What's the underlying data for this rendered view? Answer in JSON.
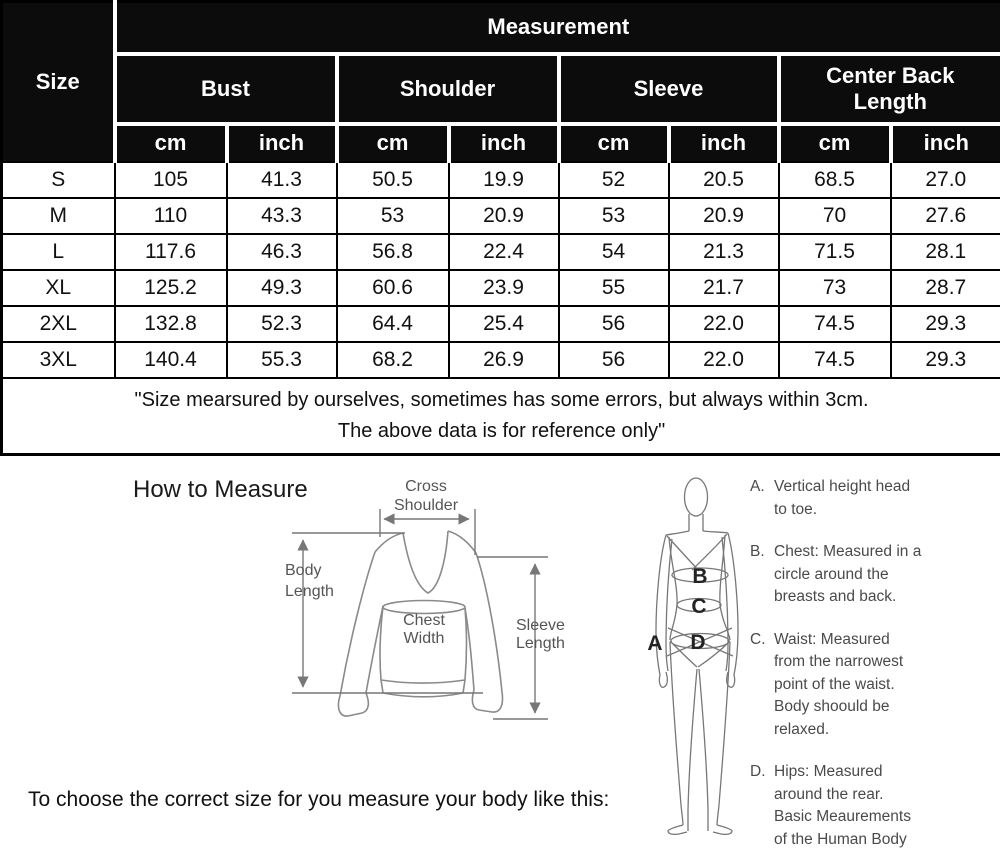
{
  "table": {
    "corner_label": "Size",
    "measurement_label": "Measurement",
    "groups": [
      {
        "label": "Bust"
      },
      {
        "label": "Shoulder"
      },
      {
        "label": "Sleeve"
      },
      {
        "label": "Center Back\nLength"
      }
    ],
    "units": [
      "cm",
      "inch"
    ],
    "rows": [
      {
        "size": "S",
        "values": [
          "105",
          "41.3",
          "50.5",
          "19.9",
          "52",
          "20.5",
          "68.5",
          "27.0"
        ]
      },
      {
        "size": "M",
        "values": [
          "110",
          "43.3",
          "53",
          "20.9",
          "53",
          "20.9",
          "70",
          "27.6"
        ]
      },
      {
        "size": "L",
        "values": [
          "117.6",
          "46.3",
          "56.8",
          "22.4",
          "54",
          "21.3",
          "71.5",
          "28.1"
        ]
      },
      {
        "size": "XL",
        "values": [
          "125.2",
          "49.3",
          "60.6",
          "23.9",
          "55",
          "21.7",
          "73",
          "28.7"
        ]
      },
      {
        "size": "2XL",
        "values": [
          "132.8",
          "52.3",
          "64.4",
          "25.4",
          "56",
          "22.0",
          "74.5",
          "29.3"
        ]
      },
      {
        "size": "3XL",
        "values": [
          "140.4",
          "55.3",
          "68.2",
          "26.9",
          "56",
          "22.0",
          "74.5",
          "29.3"
        ]
      }
    ],
    "note_line1": "\"Size mearsured by ourselves, sometimes has some errors, but always within 3cm.",
    "note_line2": "The above data is for reference only\""
  },
  "measure_section": {
    "heading": "How to Measure",
    "garment_labels": {
      "cross_shoulder": [
        "Cross",
        "Shoulder"
      ],
      "body_length": [
        "Body",
        "Length"
      ],
      "chest_width": [
        "Chest",
        "Width"
      ],
      "sleeve_length": [
        "Sleeve",
        "Length"
      ]
    }
  },
  "body_section": {
    "markers": {
      "a": "A",
      "b": "B",
      "c": "C",
      "d": "D"
    },
    "instructions": [
      {
        "label": "A.",
        "text": "Vertical height head\nto toe."
      },
      {
        "label": "B.",
        "text": "Chest: Measured in a\ncircle around the\nbreasts and back."
      },
      {
        "label": "C.",
        "text": "Waist: Measured\nfrom the narrowest\npoint of the waist.\nBody shoould be\nrelaxed."
      },
      {
        "label": "D.",
        "text": "Hips: Measured\naround the rear.\nBasic Meaurements\nof the Human Body"
      }
    ]
  },
  "footer": {
    "caption": "To choose the correct size for you measure your body like this:"
  },
  "colors": {
    "header_bg": "#0c0c0c",
    "header_text": "#ffffff",
    "grid": "#000000",
    "diagram_stroke": "#888888",
    "diagram_text": "#555555"
  }
}
